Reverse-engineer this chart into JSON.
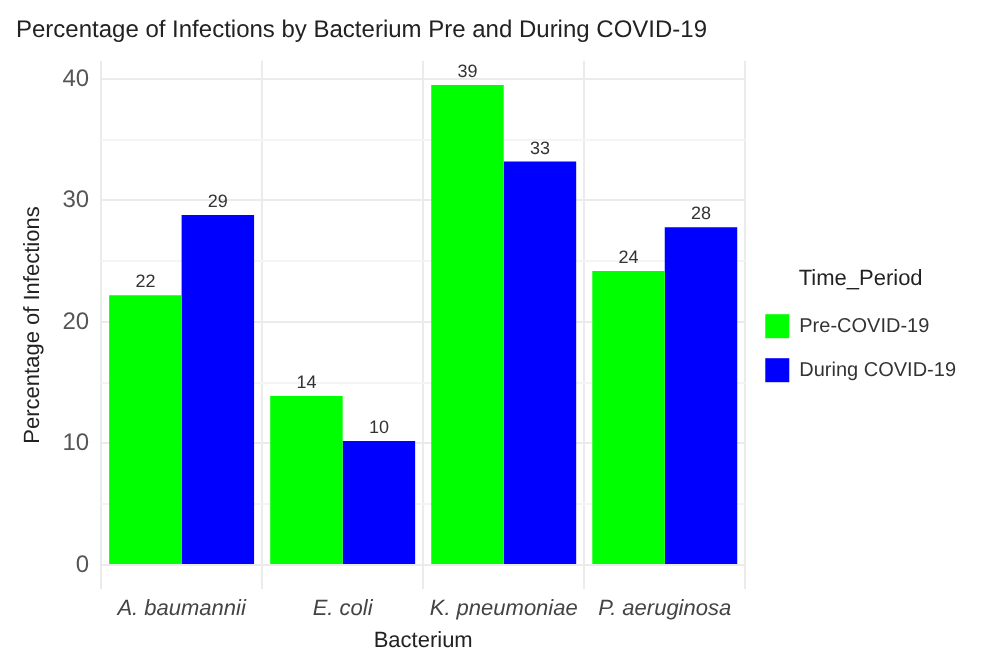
{
  "chart_data": {
    "type": "bar",
    "title": "Percentage of Infections by Bacterium Pre and During COVID-19",
    "xlabel": "Bacterium",
    "ylabel": "Percentage of Infections",
    "legend_title": "Time_Period",
    "categories": [
      "A. baumannii",
      "E. coli",
      "K. pneumoniae",
      "P. aeruginosa"
    ],
    "series": [
      {
        "name": "Pre-COVID-19",
        "color": "#00ff00",
        "values": [
          22.2,
          13.9,
          39.5,
          24.2
        ],
        "value_labels": [
          "22",
          "14",
          "39",
          "24"
        ]
      },
      {
        "name": "During COVID-19",
        "color": "#0000ff",
        "values": [
          28.8,
          10.2,
          33.2,
          27.8
        ],
        "value_labels": [
          "29",
          "10",
          "33",
          "28"
        ]
      }
    ],
    "ylim": [
      -2,
      41.5
    ],
    "yticks": [
      0,
      {
        "value": 5,
        "label": null
      },
      10,
      {
        "value": 15,
        "label": null
      },
      20,
      {
        "value": 25,
        "label": null
      },
      30,
      {
        "value": 35,
        "label": null
      },
      40
    ],
    "grid": true,
    "legend": "right"
  }
}
